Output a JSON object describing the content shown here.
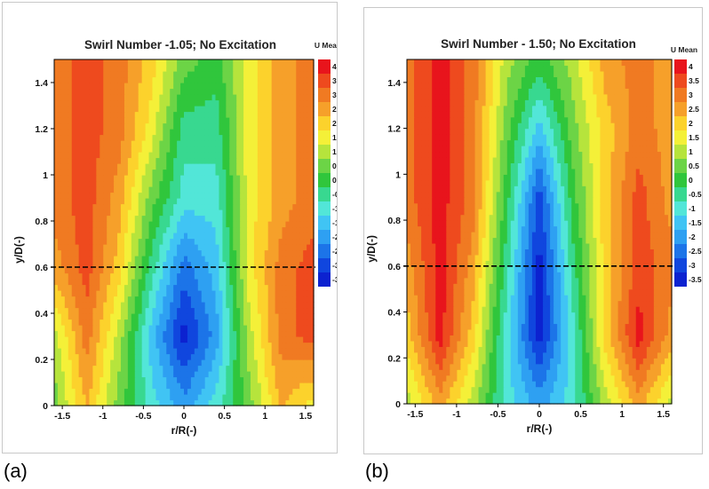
{
  "panel_labels": [
    "(a)",
    "(b)"
  ],
  "chart_data": [
    {
      "type": "heatmap",
      "title": "Swirl Number -1.05; No Excitation",
      "xlabel": "r/R(-)",
      "ylabel": "y/D(-)",
      "colorbar_title": "U Mean",
      "xlim": [
        -1.6,
        1.6
      ],
      "ylim": [
        0,
        1.5
      ],
      "xticks": [
        "-1.5",
        "-1",
        "-0.5",
        "0",
        "0.5",
        "1",
        "1.5"
      ],
      "yticks": [
        "0",
        "0.2",
        "0.4",
        "0.6",
        "0.8",
        "1",
        "1.2",
        "1.4"
      ],
      "reference_line_y": 0.6,
      "levels": [
        4,
        3.5,
        3,
        2.5,
        2,
        1.5,
        1,
        0.5,
        0,
        -0.5,
        -1,
        -1.5,
        -2,
        -2.5,
        -3,
        -3.5
      ],
      "level_labels": [
        "4",
        "3.5",
        "3",
        "2.5",
        "2",
        "1.5",
        "1",
        "0.5",
        "0",
        "-0.5",
        "-1",
        "-1.5",
        "-2",
        "-2.5",
        "-3",
        "-3.5"
      ],
      "level_colors": [
        "#e8141c",
        "#ee4a1e",
        "#f07a22",
        "#f6a02a",
        "#fcd22c",
        "#f4f038",
        "#b6e43c",
        "#6cd446",
        "#30c63c",
        "#38d890",
        "#52e6d8",
        "#40c4f4",
        "#2ea0f2",
        "#1c74e8",
        "#1046de",
        "#0c22d0"
      ],
      "r_samples": [
        -1.6,
        -1.2,
        -0.8,
        -0.4,
        0,
        0.4,
        0.8,
        1.2,
        1.6
      ],
      "y_samples": [
        0,
        0.3,
        0.6,
        0.9,
        1.2,
        1.5
      ],
      "u_mean_grid": [
        [
          0.5,
          2.3,
          0.5,
          -1.0,
          -2.0,
          -1.0,
          0.5,
          2.3,
          1.5
        ],
        [
          1.0,
          3.0,
          1.0,
          -1.5,
          -3.5,
          -2.0,
          1.0,
          3.0,
          3.5
        ],
        [
          2.5,
          3.5,
          2.0,
          -0.5,
          -2.5,
          -1.5,
          1.5,
          3.0,
          3.5
        ],
        [
          3.0,
          3.5,
          2.5,
          0.5,
          -1.0,
          -1.0,
          1.5,
          2.5,
          3.0
        ],
        [
          3.0,
          3.5,
          3.0,
          1.5,
          -0.5,
          -0.5,
          1.5,
          2.5,
          3.0
        ],
        [
          3.0,
          3.5,
          3.0,
          2.0,
          0.5,
          0.0,
          1.5,
          2.5,
          3.0
        ]
      ]
    },
    {
      "type": "heatmap",
      "title": "Swirl Number - 1.50; No Excitation",
      "xlabel": "r/R(-)",
      "ylabel": "y/D(-)",
      "colorbar_title": "U Mean",
      "xlim": [
        -1.6,
        1.6
      ],
      "ylim": [
        0,
        1.5
      ],
      "xticks": [
        "-1.5",
        "-1",
        "-0.5",
        "0",
        "0.5",
        "1",
        "1.5"
      ],
      "yticks": [
        "0",
        "0.2",
        "0.4",
        "0.6",
        "0.8",
        "1",
        "1.2",
        "1.4"
      ],
      "reference_line_y": 0.6,
      "levels": [
        4,
        3.5,
        3,
        2.5,
        2,
        1.5,
        1,
        0.5,
        0,
        -0.5,
        -1,
        -1.5,
        -2,
        -2.5,
        -3,
        -3.5
      ],
      "level_labels": [
        "4",
        "3.5",
        "3",
        "2.5",
        "2",
        "1.5",
        "1",
        "0.5",
        "0",
        "-0.5",
        "-1",
        "-1.5",
        "-2",
        "-2.5",
        "-3",
        "-3.5"
      ],
      "level_colors": [
        "#e8141c",
        "#ee4a1e",
        "#f07a22",
        "#f6a02a",
        "#fcd22c",
        "#f4f038",
        "#b6e43c",
        "#6cd446",
        "#30c63c",
        "#38d890",
        "#52e6d8",
        "#40c4f4",
        "#2ea0f2",
        "#1c74e8",
        "#1046de",
        "#0c22d0"
      ],
      "r_samples": [
        -1.6,
        -1.2,
        -0.8,
        -0.4,
        0,
        0.4,
        0.8,
        1.2,
        1.6
      ],
      "y_samples": [
        0,
        0.3,
        0.6,
        0.9,
        1.2,
        1.5
      ],
      "u_mean_grid": [
        [
          1.0,
          2.5,
          1.0,
          -1.0,
          -2.0,
          -1.0,
          1.0,
          2.5,
          1.0
        ],
        [
          2.0,
          4.0,
          2.0,
          -1.0,
          -3.5,
          -1.0,
          2.0,
          4.0,
          2.5
        ],
        [
          2.5,
          4.0,
          2.5,
          -0.5,
          -3.5,
          -0.5,
          2.0,
          3.5,
          3.0
        ],
        [
          3.0,
          4.0,
          3.0,
          0.0,
          -3.0,
          0.0,
          2.0,
          3.5,
          2.5
        ],
        [
          3.0,
          4.0,
          3.0,
          0.5,
          -1.5,
          0.5,
          2.0,
          3.0,
          2.5
        ],
        [
          3.0,
          4.0,
          3.0,
          1.0,
          0.0,
          1.0,
          2.5,
          3.0,
          2.5
        ]
      ]
    }
  ]
}
